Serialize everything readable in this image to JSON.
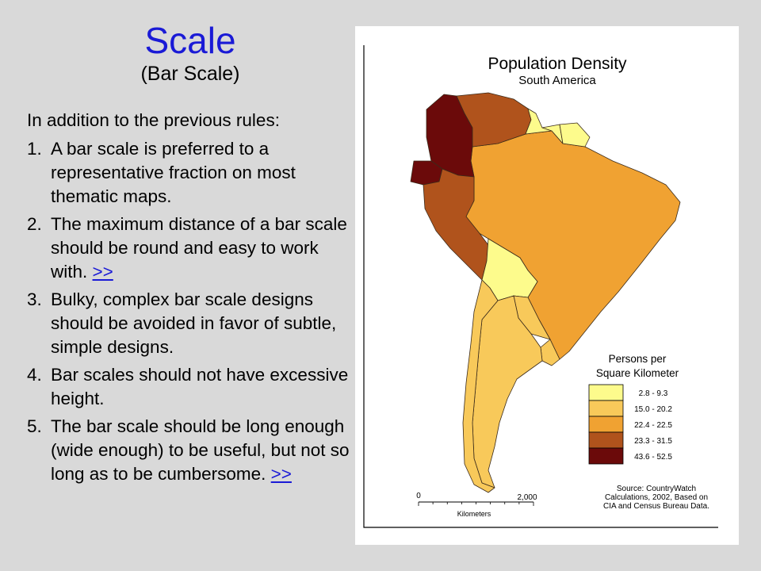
{
  "slide": {
    "title": "Scale",
    "subtitle": "(Bar Scale)",
    "intro": "In addition to the previous rules:",
    "rules": [
      {
        "num": "1.",
        "text": "A bar scale is preferred to a representative fraction on most thematic maps.",
        "link": ""
      },
      {
        "num": "2.",
        "text": "The maximum distance of a bar scale should be round and easy to work with.",
        "link": ">>"
      },
      {
        "num": "3.",
        "text": "Bulky, complex bar scale designs should be avoided in favor of subtle, simple designs.",
        "link": ""
      },
      {
        "num": "4.",
        "text": "Bar scales should not have excessive height.",
        "link": ""
      },
      {
        "num": "5.",
        "text": "The bar scale should be long enough (wide enough) to be useful, but not so long as to be cumbersome.",
        "link": ">>"
      }
    ],
    "colors": {
      "background": "#d9d9d9",
      "title": "#1a1ad6",
      "link": "#1a1ad6"
    }
  },
  "map": {
    "title": "Population Density",
    "subtitle": "South America",
    "legend": {
      "title_line1": "Persons per",
      "title_line2": "Square Kilometer",
      "classes": [
        {
          "label": "2.8 - 9.3",
          "color": "#fdfb8c"
        },
        {
          "label": "15.0 - 20.2",
          "color": "#f8c95a"
        },
        {
          "label": "22.4 - 22.5",
          "color": "#f0a232"
        },
        {
          "label": "23.3 - 31.5",
          "color": "#b0531c"
        },
        {
          "label": "43.6 - 52.5",
          "color": "#6b0a0a"
        }
      ]
    },
    "source_lines": [
      "Source: CountryWatch",
      "Calculations, 2002, Based on",
      "CIA and Census Bureau Data."
    ],
    "scale_bar": {
      "start": "0",
      "end": "2,000",
      "unit": "Kilometers"
    }
  }
}
